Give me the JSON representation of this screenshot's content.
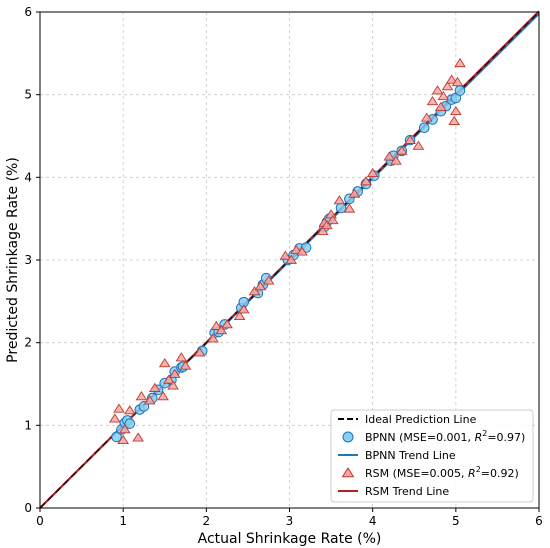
{
  "chart_data": {
    "type": "scatter",
    "xlabel": "Actual Shrinkage Rate (%)",
    "ylabel": "Predicted Shrinkage Rate (%)",
    "xlim": [
      0,
      6
    ],
    "ylim": [
      0,
      6
    ],
    "xticks": [
      "0",
      "1",
      "2",
      "3",
      "4",
      "5",
      "6"
    ],
    "yticks": [
      "0",
      "1",
      "2",
      "3",
      "4",
      "5",
      "6"
    ],
    "grid": true,
    "legend_position": "bottom-right",
    "legend": [
      {
        "label": "Ideal Prediction Line"
      },
      {
        "label": "BPNN (MSE=0.001, R²=0.97)",
        "label_main": "BPNN (MSE=0.001, ",
        "label_r": "R",
        "label_sup": "2",
        "label_tail": "=0.97)"
      },
      {
        "label": "BPNN Trend Line"
      },
      {
        "label": "RSM (MSE=0.005, R²=0.92)",
        "label_main": "RSM (MSE=0.005, ",
        "label_r": "R",
        "label_sup": "2",
        "label_tail": "=0.92)"
      },
      {
        "label": "RSM Trend Line"
      }
    ],
    "ideal_line": {
      "x": [
        0,
        6
      ],
      "y": [
        0,
        6
      ]
    },
    "bpnn_trend": {
      "x": [
        0,
        6
      ],
      "y": [
        0,
        5.98
      ]
    },
    "rsm_trend": {
      "x": [
        0,
        6
      ],
      "y": [
        0,
        6.01
      ]
    },
    "series": [
      {
        "name": "BPNN",
        "x": [
          0.92,
          0.98,
          1.02,
          1.05,
          1.08,
          1.2,
          1.25,
          1.35,
          1.42,
          1.5,
          1.58,
          1.62,
          1.7,
          1.72,
          1.95,
          2.1,
          2.15,
          2.22,
          2.42,
          2.45,
          2.62,
          2.68,
          2.72,
          2.98,
          3.05,
          3.12,
          3.2,
          3.42,
          3.45,
          3.48,
          3.62,
          3.72,
          3.82,
          3.92,
          4.02,
          4.22,
          4.25,
          4.35,
          4.45,
          4.62,
          4.72,
          4.82,
          4.88,
          4.95,
          5.0,
          5.05
        ],
        "y": [
          0.86,
          0.95,
          1.03,
          1.06,
          1.02,
          1.19,
          1.23,
          1.33,
          1.43,
          1.51,
          1.55,
          1.65,
          1.7,
          1.71,
          1.9,
          2.12,
          2.13,
          2.22,
          2.42,
          2.49,
          2.6,
          2.7,
          2.78,
          3.0,
          3.06,
          3.14,
          3.15,
          3.4,
          3.46,
          3.5,
          3.63,
          3.74,
          3.83,
          3.92,
          4.02,
          4.2,
          4.26,
          4.32,
          4.45,
          4.6,
          4.7,
          4.8,
          4.86,
          4.94,
          4.96,
          5.05
        ]
      },
      {
        "name": "RSM",
        "x": [
          0.9,
          0.95,
          1.0,
          1.02,
          1.08,
          1.18,
          1.22,
          1.32,
          1.38,
          1.48,
          1.5,
          1.55,
          1.6,
          1.62,
          1.7,
          1.75,
          1.92,
          2.08,
          2.12,
          2.18,
          2.25,
          2.4,
          2.45,
          2.58,
          2.65,
          2.75,
          2.95,
          3.02,
          3.08,
          3.15,
          3.4,
          3.42,
          3.45,
          3.5,
          3.52,
          3.6,
          3.72,
          3.78,
          3.92,
          4.0,
          4.2,
          4.28,
          4.35,
          4.45,
          4.55,
          4.65,
          4.72,
          4.78,
          4.82,
          4.85,
          4.9,
          4.95,
          4.98,
          5.0,
          5.02,
          5.05
        ],
        "y": [
          1.08,
          1.2,
          0.82,
          0.95,
          1.18,
          0.85,
          1.35,
          1.3,
          1.45,
          1.35,
          1.75,
          1.55,
          1.48,
          1.62,
          1.82,
          1.72,
          1.88,
          2.05,
          2.2,
          2.15,
          2.22,
          2.32,
          2.4,
          2.62,
          2.68,
          2.75,
          3.05,
          3.0,
          3.12,
          3.1,
          3.35,
          3.45,
          3.42,
          3.55,
          3.48,
          3.72,
          3.62,
          3.8,
          3.95,
          4.05,
          4.25,
          4.2,
          4.32,
          4.45,
          4.38,
          4.72,
          4.92,
          5.05,
          4.85,
          4.98,
          5.1,
          5.18,
          4.68,
          4.8,
          5.15,
          5.38
        ]
      }
    ]
  },
  "colors": {
    "bpnn_fill": "#87cfee",
    "bpnn_edge": "#1f6fbf",
    "bpnn_line": "#1f77b4",
    "rsm_fill": "#f4a6a6",
    "rsm_edge": "#c0392b",
    "rsm_line": "#b22222",
    "ideal_line": "#000000",
    "grid": "#c8c8c8"
  }
}
